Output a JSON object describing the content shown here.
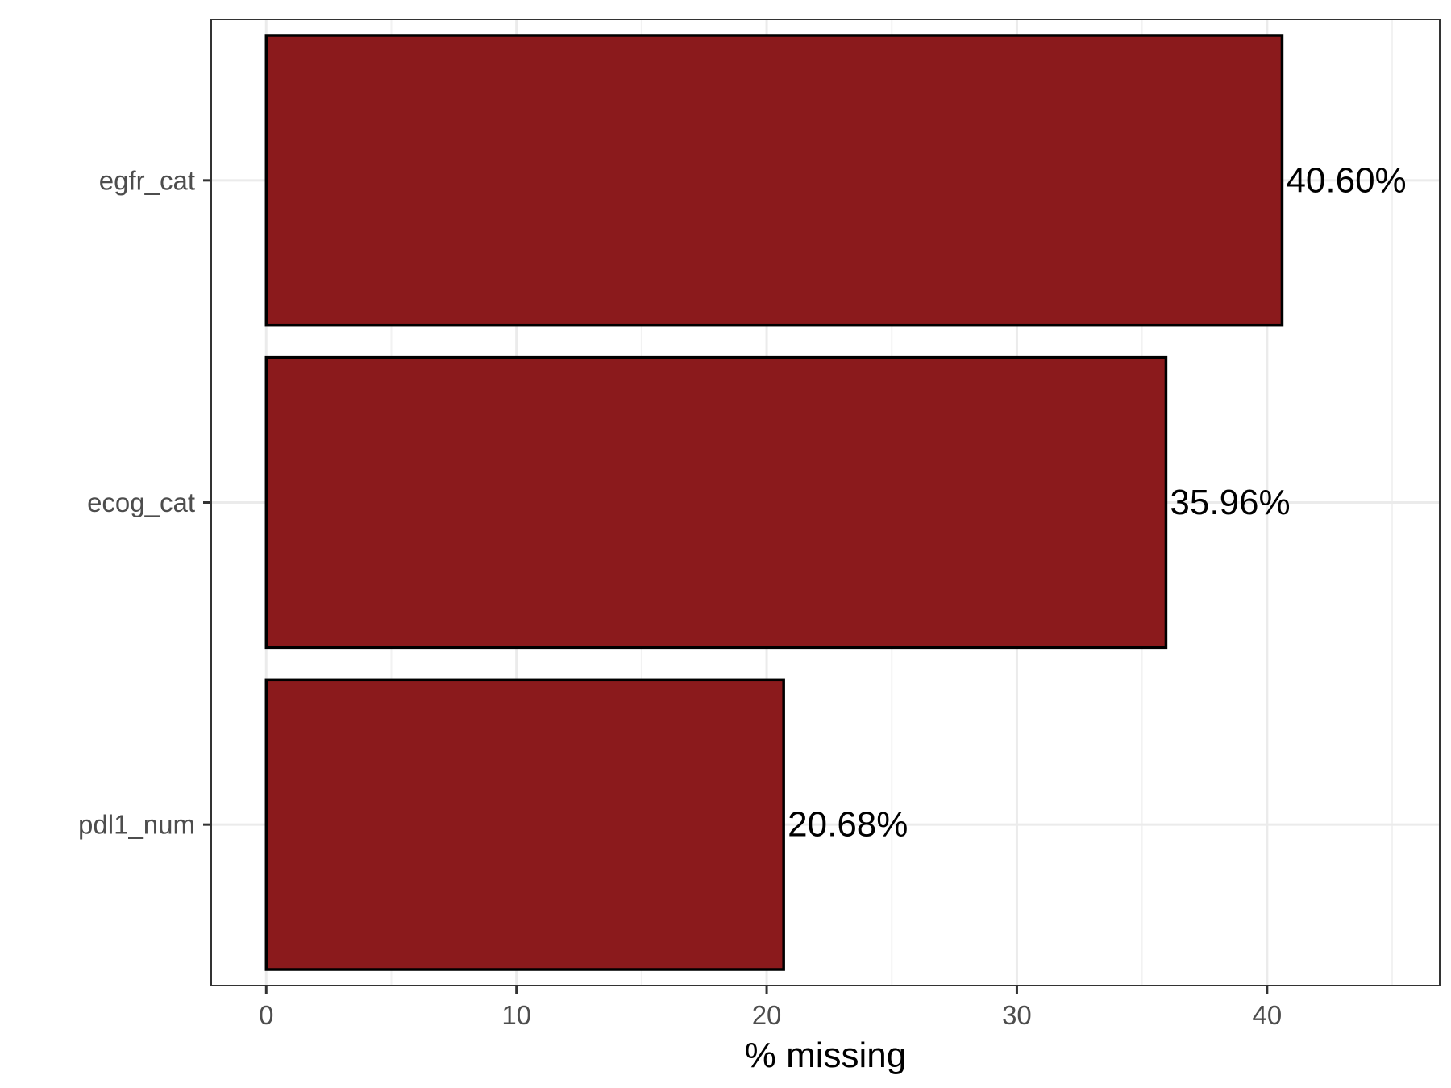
{
  "chart_data": {
    "type": "bar",
    "orientation": "horizontal",
    "categories": [
      "egfr_cat",
      "ecog_cat",
      "pdl1_num"
    ],
    "values": [
      40.6,
      35.96,
      20.68
    ],
    "data_labels": [
      "40.60%",
      "35.96%",
      "20.68%"
    ],
    "xlabel": "% missing",
    "ylabel": "",
    "xlim": [
      -2.2,
      46.9
    ],
    "x_ticks": [
      0,
      10,
      20,
      30,
      40
    ],
    "x_tick_labels": [
      "0",
      "10",
      "20",
      "30",
      "40"
    ],
    "grid": true,
    "legend": "none",
    "colors": {
      "bar_fill": "#8B1A1C",
      "bar_stroke": "#000000",
      "grid_major": "#EBEBEB",
      "grid_minor": "#F2F2F2",
      "panel_border": "#333333"
    }
  }
}
